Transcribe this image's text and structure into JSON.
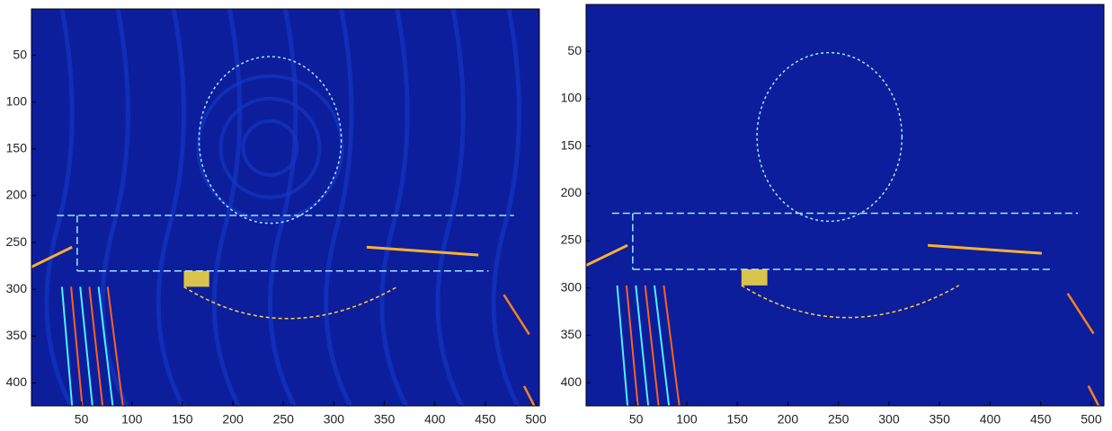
{
  "chart_data": [
    {
      "type": "heatmap",
      "color": "#0c1e9c",
      "ripples": true,
      "xlim": [
        0.5,
        503.5
      ],
      "ylim": [
        0.5,
        424.5
      ],
      "reverse_y": true,
      "xticks": [
        50,
        100,
        150,
        200,
        250,
        300,
        350,
        400,
        450,
        500
      ],
      "yticks": [
        50,
        100,
        150,
        200,
        250,
        300,
        350,
        400
      ]
    },
    {
      "type": "heatmap",
      "color": "#0c1e9c",
      "ripples": false,
      "xlim": [
        0.5,
        512.5
      ],
      "ylim": [
        0.5,
        424.5
      ],
      "reverse_y": true,
      "xticks": [
        50,
        100,
        150,
        200,
        250,
        300,
        350,
        400,
        450,
        500
      ],
      "yticks": [
        50,
        100,
        150,
        200,
        250,
        300,
        350,
        400
      ]
    }
  ]
}
